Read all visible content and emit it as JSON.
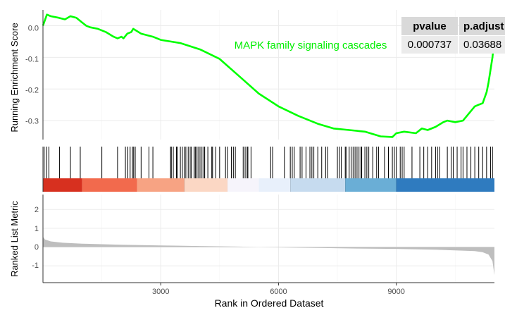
{
  "chart_data": {
    "type": "line",
    "title": "MAPK family signaling cascades",
    "xlabel": "Rank in Ordered Dataset",
    "x_ticks": [
      3000,
      6000,
      9000
    ],
    "xlim": [
      0,
      11500
    ],
    "colors": {
      "curve": "#00ff00",
      "bar": "#bebebe",
      "hit": "#000000",
      "grid": "#ebebeb"
    },
    "es_panel": {
      "ylabel": "Running Enrichment Score",
      "y_ticks": [
        "0.0",
        "-0.1",
        "-0.2",
        "-0.3"
      ],
      "ylim": [
        -0.36,
        0.05
      ],
      "x": [
        0,
        100,
        200,
        400,
        560,
        700,
        850,
        1000,
        1100,
        1200,
        1400,
        1600,
        1800,
        1900,
        2000,
        2050,
        2150,
        2250,
        2300,
        2500,
        2800,
        3000,
        3500,
        4000,
        4500,
        5000,
        5500,
        6000,
        6500,
        7000,
        7400,
        7800,
        8200,
        8600,
        8900,
        9000,
        9200,
        9500,
        9650,
        9800,
        10000,
        10200,
        10300,
        10500,
        10700,
        10800,
        10900,
        11000,
        11100,
        11200,
        11300,
        11350,
        11400,
        11450,
        11500
      ],
      "y": [
        0.0,
        0.035,
        0.03,
        0.025,
        0.02,
        0.03,
        0.025,
        0.01,
        0.0,
        -0.005,
        -0.01,
        -0.02,
        -0.035,
        -0.04,
        -0.035,
        -0.04,
        -0.025,
        -0.02,
        -0.01,
        -0.025,
        -0.035,
        -0.045,
        -0.055,
        -0.075,
        -0.105,
        -0.16,
        -0.215,
        -0.255,
        -0.285,
        -0.31,
        -0.325,
        -0.33,
        -0.335,
        -0.35,
        -0.352,
        -0.34,
        -0.335,
        -0.34,
        -0.325,
        -0.33,
        -0.32,
        -0.305,
        -0.3,
        -0.305,
        -0.3,
        -0.285,
        -0.27,
        -0.255,
        -0.25,
        -0.245,
        -0.21,
        -0.18,
        -0.14,
        -0.1,
        -0.04
      ]
    },
    "hits": [
      30,
      90,
      150,
      420,
      700,
      950,
      1500,
      1900,
      2100,
      2160,
      2220,
      2280,
      2310,
      2350,
      2500,
      2700,
      2800,
      3250,
      3270,
      3320,
      3400,
      3420,
      3500,
      3550,
      3600,
      3640,
      3700,
      3750,
      3780,
      3850,
      3880,
      3900,
      3950,
      4000,
      4050,
      4100,
      4120,
      4200,
      4300,
      4320,
      4400,
      4500,
      4650,
      4700,
      4800,
      4850,
      4900,
      5100,
      5150,
      5200,
      5220,
      5300,
      5800,
      5850,
      6150,
      6300,
      6350,
      6400,
      6550,
      6600,
      6700,
      6800,
      6850,
      6900,
      7000,
      7100,
      7200,
      7250,
      7500,
      7550,
      7600,
      7700,
      7720,
      7800,
      7850,
      7900,
      7950,
      8000,
      8050,
      8100,
      8120,
      8200,
      8250,
      8300,
      8400,
      8500,
      8550,
      8700,
      8800,
      8900,
      8950,
      9000,
      9100,
      9150,
      9200,
      9400,
      9600,
      9700,
      9800,
      9900,
      10000,
      10050,
      10100,
      10300,
      10400,
      10450,
      10550,
      10650,
      10700,
      10800,
      10900,
      11000,
      11100,
      11200,
      11300,
      11400,
      11450
    ],
    "colorbar": [
      {
        "from": 0,
        "to": 1000,
        "color": "#d7301f"
      },
      {
        "from": 1000,
        "to": 2400,
        "color": "#f26a4d"
      },
      {
        "from": 2400,
        "to": 3600,
        "color": "#f7a383"
      },
      {
        "from": 3600,
        "to": 4700,
        "color": "#fbd7c4"
      },
      {
        "from": 4700,
        "to": 5500,
        "color": "#f6f4fb"
      },
      {
        "from": 5500,
        "to": 6300,
        "color": "#e8f0fb"
      },
      {
        "from": 6300,
        "to": 7700,
        "color": "#c6dbef"
      },
      {
        "from": 7700,
        "to": 9000,
        "color": "#6aaed6"
      },
      {
        "from": 9000,
        "to": 11500,
        "color": "#2f7bbf"
      }
    ],
    "metric_panel": {
      "ylabel": "Ranked List Metric",
      "y_ticks": [
        "2",
        "1",
        "0",
        "-1"
      ],
      "ylim": [
        -1.9,
        2.8
      ],
      "x": [
        0,
        50,
        200,
        500,
        1000,
        2000,
        3000,
        4000,
        5000,
        5500,
        6000,
        7000,
        8000,
        9000,
        10000,
        10500,
        11000,
        11200,
        11350,
        11450,
        11500
      ],
      "y": [
        0.55,
        0.4,
        0.3,
        0.23,
        0.18,
        0.12,
        0.08,
        0.05,
        0.02,
        0.0,
        -0.02,
        -0.05,
        -0.08,
        -0.1,
        -0.14,
        -0.18,
        -0.22,
        -0.28,
        -0.4,
        -0.75,
        -1.5
      ]
    },
    "table": {
      "headers": [
        "pvalue",
        "p.adjust"
      ],
      "values": [
        "0.000737",
        "0.03688"
      ]
    }
  }
}
